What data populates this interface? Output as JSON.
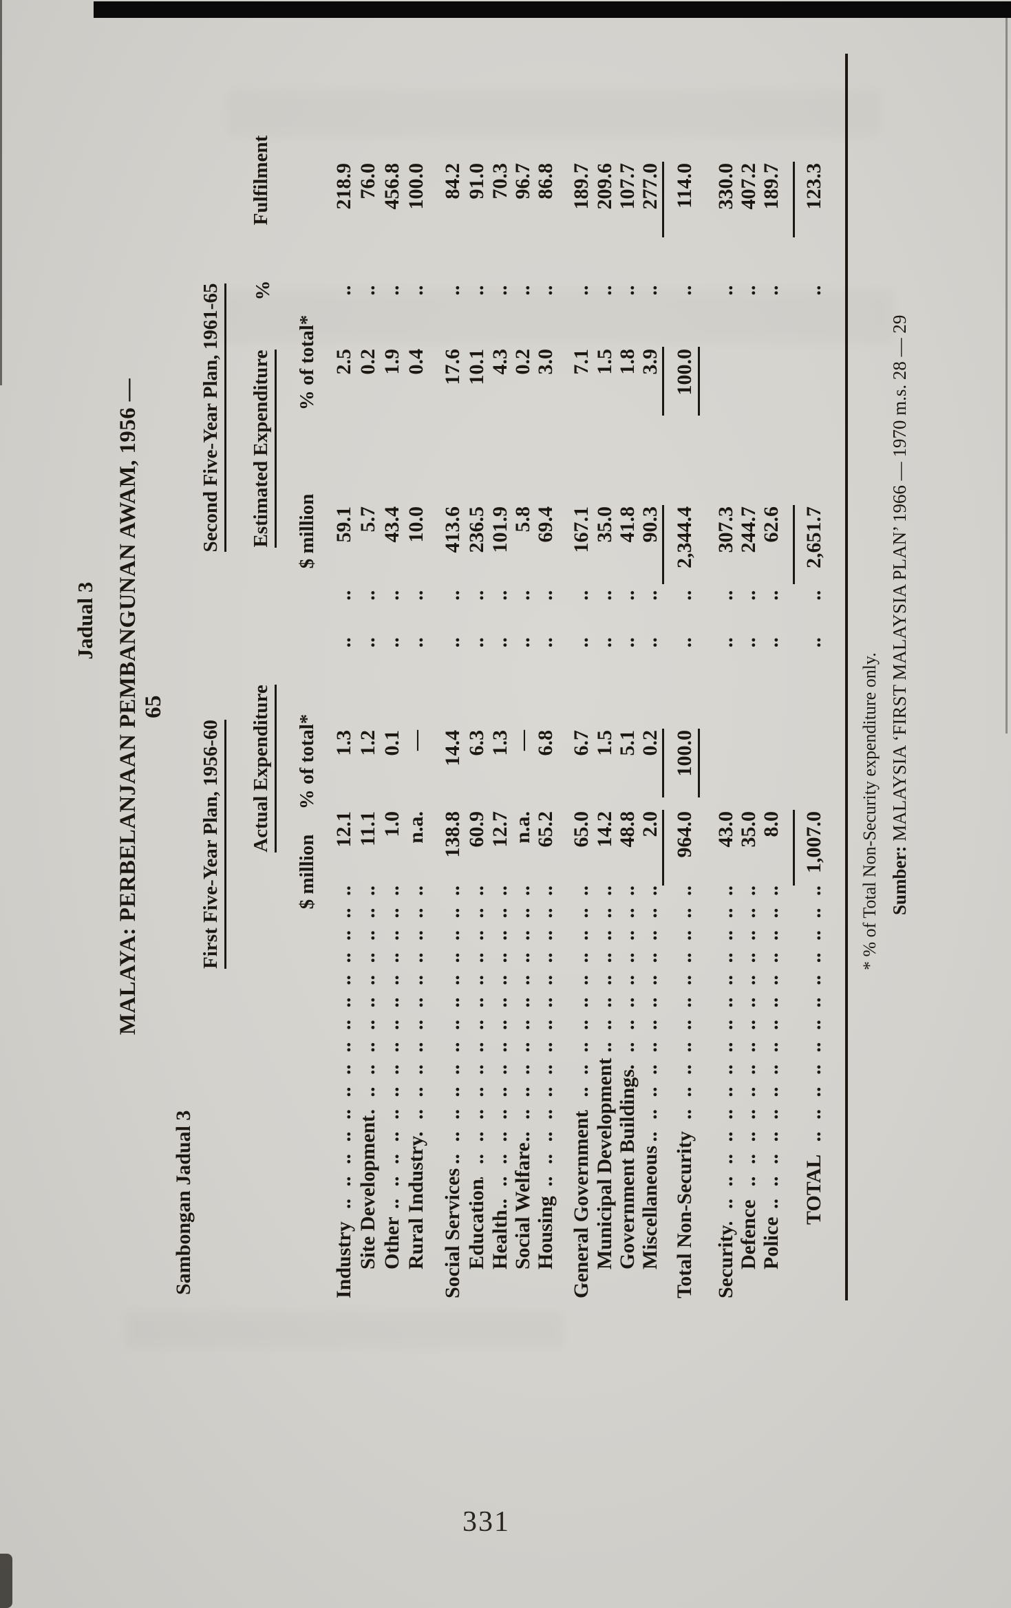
{
  "page": {
    "background_hex": "#d4d2cd",
    "ink_hex": "#1c1710",
    "page_number": "331"
  },
  "titles": {
    "table_number": "Jadual 3",
    "continuation": "Sambongan Jadual 3",
    "main": "MALAYA: PERBELANJAAN PEMBANGUNAN AWAM, 1956 — 65"
  },
  "table": {
    "plan1": {
      "title": "First Five-Year Plan, 1956-60",
      "subtitle": "Actual Expenditure",
      "col_amount": "$ million",
      "col_pct": "% of total*"
    },
    "plan2": {
      "title": "Second Five-Year Plan, 1961-65",
      "subtitle": "Estimated Expenditure",
      "col_amount": "$ million",
      "col_pct": "% of total*"
    },
    "pct_header": "%",
    "fulfilment_header": "Fulfilment",
    "leader_fill": ".. .. .. .. .. .. .. .. .. .. .. .. .. .. .. .. .. ..",
    "sep1": ".. ..",
    "sep2": "..",
    "rows": [
      {
        "label": "Industry",
        "indent": 0,
        "d1": "12.1",
        "p1": "1.3",
        "d2": "59.1",
        "p2": "2.5",
        "f": "218.9"
      },
      {
        "label": "Site Development",
        "indent": 1,
        "d1": "11.1",
        "p1": "1.2",
        "d2": "5.7",
        "p2": "0.2",
        "f": "76.0"
      },
      {
        "label": "Other",
        "indent": 1,
        "d1": "1.0",
        "p1": "0.1",
        "d2": "43.4",
        "p2": "1.9",
        "f": "456.8"
      },
      {
        "label": "Rural Industry",
        "indent": 1,
        "d1": "n.a.",
        "p1": "—",
        "d2": "10.0",
        "p2": "0.4",
        "f": "100.0"
      },
      {
        "label": "Social Services",
        "indent": 0,
        "d1": "138.8",
        "p1": "14.4",
        "d2": "413.6",
        "p2": "17.6",
        "f": "84.2"
      },
      {
        "label": "Education",
        "indent": 1,
        "d1": "60.9",
        "p1": "6.3",
        "d2": "236.5",
        "p2": "10.1",
        "f": "91.0"
      },
      {
        "label": "Health",
        "indent": 1,
        "d1": "12.7",
        "p1": "1.3",
        "d2": "101.9",
        "p2": "4.3",
        "f": "70.3"
      },
      {
        "label": "Social Welfare",
        "indent": 1,
        "d1": "n.a.",
        "p1": "—",
        "d2": "5.8",
        "p2": "0.2",
        "f": "96.7"
      },
      {
        "label": "Housing",
        "indent": 1,
        "d1": "65.2",
        "p1": "6.8",
        "d2": "69.4",
        "p2": "3.0",
        "f": "86.8"
      },
      {
        "label": "General Government",
        "indent": 0,
        "d1": "65.0",
        "p1": "6.7",
        "d2": "167.1",
        "p2": "7.1",
        "f": "189.7"
      },
      {
        "label": "Municipal Development",
        "indent": 1,
        "d1": "14.2",
        "p1": "1.5",
        "d2": "35.0",
        "p2": "1.5",
        "f": "209.6"
      },
      {
        "label": "Government Buildings",
        "indent": 1,
        "d1": "48.8",
        "p1": "5.1",
        "d2": "41.8",
        "p2": "1.8",
        "f": "107.7"
      },
      {
        "label": "Miscellaneous",
        "indent": 1,
        "d1": "2.0",
        "p1": "0.2",
        "d2": "90.3",
        "p2": "3.9",
        "f": "277.0"
      },
      {
        "label": "Total Non-Security",
        "indent": 0,
        "d1": "964.0",
        "p1": "100.0",
        "d2": "2,344.4",
        "p2": "100.0",
        "f": "114.0"
      },
      {
        "label": "Security",
        "indent": 0,
        "d1": "43.0",
        "p1": "",
        "d2": "307.3",
        "p2": "",
        "f": "330.0"
      },
      {
        "label": "Defence",
        "indent": 1,
        "d1": "35.0",
        "p1": "",
        "d2": "244.7",
        "p2": "",
        "f": "407.2"
      },
      {
        "label": "Police",
        "indent": 1,
        "d1": "8.0",
        "p1": "",
        "d2": "62.6",
        "p2": "",
        "f": "189.7"
      },
      {
        "label": "TOTAL",
        "indent": 2,
        "d1": "1,007.0",
        "p1": "",
        "d2": "2,651.7",
        "p2": "",
        "f": "123.3"
      }
    ]
  },
  "footnotes": {
    "asterisk": "* % of Total Non-Security expenditure only.",
    "source_label": "Sumber:",
    "source_text": " MALAYSIA ‘FIRST MALAYSIA PLAN’ 1966 — 1970 m.s. 28 — 29"
  }
}
